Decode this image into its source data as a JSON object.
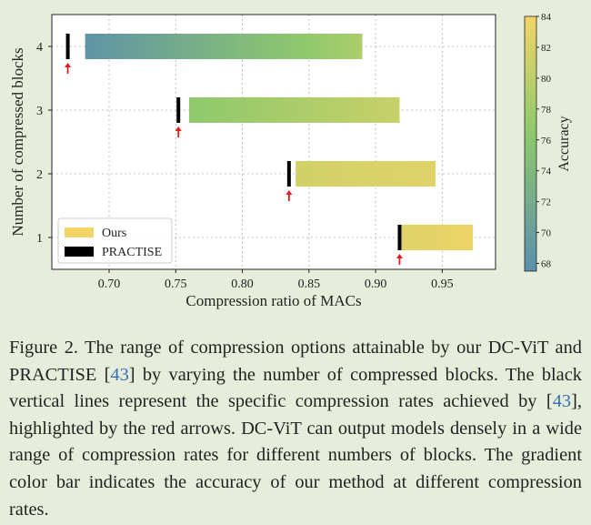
{
  "chart_data": {
    "type": "bar",
    "orientation": "horizontal-range",
    "xlabel": "Compression ratio of MACs",
    "ylabel": "Number of compressed blocks",
    "xlim": [
      0.657,
      0.99
    ],
    "ylim": [
      0.5,
      4.5
    ],
    "xticks": [
      "0.70",
      "0.75",
      "0.80",
      "0.85",
      "0.90",
      "0.95"
    ],
    "xtick_values": [
      0.7,
      0.75,
      0.8,
      0.85,
      0.9,
      0.95
    ],
    "yticks": [
      "1",
      "2",
      "3",
      "4"
    ],
    "ytick_values": [
      1,
      2,
      3,
      4
    ],
    "grid": true,
    "legend_position": "lower-left",
    "series": [
      {
        "name": "Ours",
        "ranges": [
          {
            "blocks": 1,
            "start": 0.919,
            "end": 0.973,
            "acc_start": 82.5,
            "acc_end": 83.5
          },
          {
            "blocks": 2,
            "start": 0.84,
            "end": 0.945,
            "acc_start": 81.5,
            "acc_end": 82.5
          },
          {
            "blocks": 3,
            "start": 0.76,
            "end": 0.918,
            "acc_start": 76.5,
            "acc_end": 80.8
          },
          {
            "blocks": 4,
            "start": 0.682,
            "end": 0.89,
            "acc_start": 68.3,
            "acc_end": 78.8
          }
        ]
      },
      {
        "name": "PRACTISE",
        "points": [
          {
            "blocks": 1,
            "x": 0.918
          },
          {
            "blocks": 2,
            "x": 0.835
          },
          {
            "blocks": 3,
            "x": 0.752
          },
          {
            "blocks": 4,
            "x": 0.669
          }
        ]
      }
    ],
    "colorbar": {
      "label": "Accuracy",
      "min": 67.5,
      "max": 84,
      "ticks": [
        "68",
        "70",
        "72",
        "74",
        "76",
        "78",
        "80",
        "82",
        "84"
      ],
      "tick_values": [
        68,
        70,
        72,
        74,
        76,
        78,
        80,
        82,
        84
      ],
      "color_low": "#5b8fae",
      "color_mid": "#8ec96b",
      "color_high": "#f3d567"
    },
    "arrow_color": "#e8191c",
    "practise_color": "#000000"
  },
  "caption": {
    "p1": "Figure 2. The range of compression options attainable by our DC-ViT and PRACTISE [",
    "ref1": "43",
    "p2": "] by varying the number of compressed blocks. The black vertical lines represent the specific compression rates achieved by [",
    "ref2": "43",
    "p3": "], highlighted by the red arrows. DC-ViT can output models densely in a wide range of compression rates for different numbers of blocks. The gradient color bar indicates the accuracy of our method at different compression rates."
  }
}
